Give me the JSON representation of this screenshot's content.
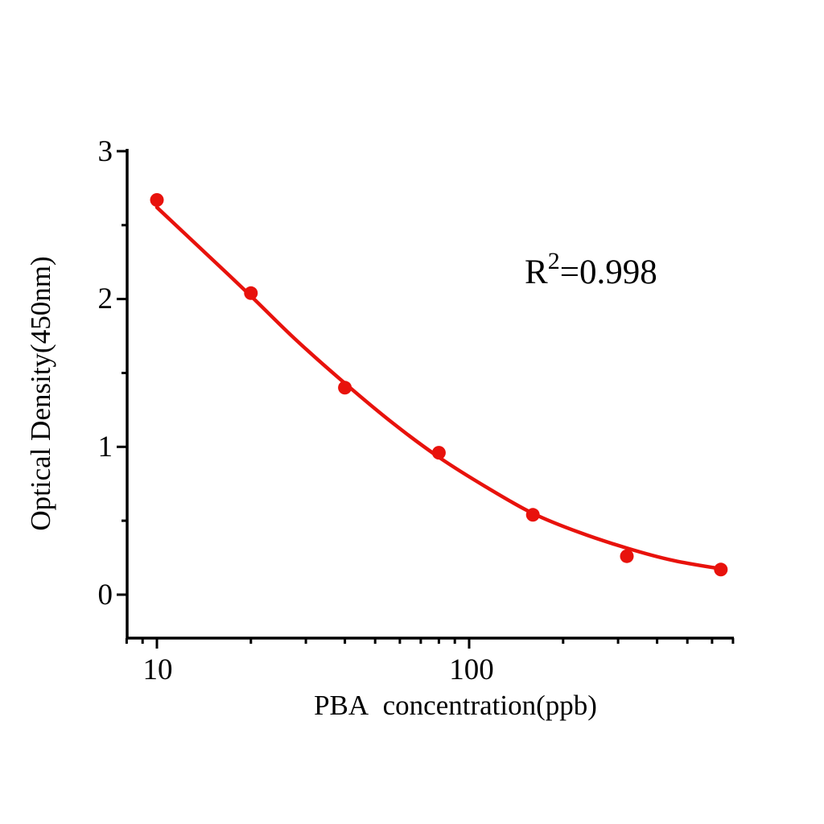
{
  "chart_data": {
    "type": "scatter",
    "title": "",
    "xlabel": "PBA  concentration(ppb)",
    "ylabel": "Optical Density(450nm)",
    "x_scale": "log",
    "xlim": [
      8,
      700
    ],
    "ylim": [
      -0.3,
      3.02
    ],
    "grid": false,
    "legend": "none",
    "x_major_ticks": [
      10,
      100
    ],
    "x_major_tick_labels": [
      "10",
      "100"
    ],
    "x_minor_ticks": [
      8,
      9,
      20,
      30,
      40,
      50,
      60,
      70,
      80,
      90,
      200,
      300,
      400,
      500,
      600,
      700
    ],
    "y_major_ticks": [
      3,
      2,
      1,
      0
    ],
    "y_major_tick_labels": [
      "3",
      "2",
      "1",
      "0"
    ],
    "y_minor_ticks": [
      2.5,
      1.5,
      0.5
    ],
    "series": [
      {
        "name": "standard-points",
        "type": "scatter",
        "marker": "circle",
        "color": "#e8120c",
        "x": [
          10,
          20,
          40,
          80,
          160,
          320,
          640
        ],
        "y": [
          2.67,
          2.04,
          1.4,
          0.96,
          0.54,
          0.26,
          0.17
        ]
      }
    ],
    "fit_curve": {
      "name": "4PL-fit",
      "color": "#e8120c",
      "points": [
        [
          10,
          2.62
        ],
        [
          14,
          2.33
        ],
        [
          20,
          2.02
        ],
        [
          28,
          1.72
        ],
        [
          40,
          1.43
        ],
        [
          57,
          1.16
        ],
        [
          80,
          0.93
        ],
        [
          113,
          0.73
        ],
        [
          160,
          0.55
        ],
        [
          226,
          0.42
        ],
        [
          320,
          0.315
        ],
        [
          453,
          0.23
        ],
        [
          640,
          0.175
        ]
      ]
    },
    "annotation": {
      "base": "R",
      "sup": "2",
      "rest": "=0.998"
    }
  },
  "colors": {
    "series_red": "#e8120c",
    "axis_black": "#000000",
    "background": "#ffffff"
  }
}
